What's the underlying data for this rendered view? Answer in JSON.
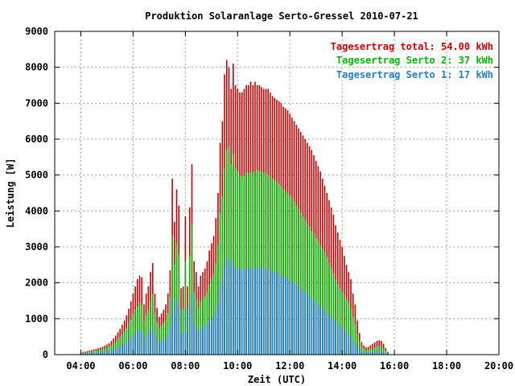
{
  "chart_data": {
    "type": "bar",
    "title": "Produktion Solaranlage Serto-Gressel 2010-07-21",
    "xlabel": "Zeit (UTC)",
    "ylabel": "Leistung [W]",
    "x_ticks": [
      "04:00",
      "06:00",
      "08:00",
      "10:00",
      "12:00",
      "14:00",
      "16:00",
      "18:00",
      "20:00"
    ],
    "y_ticks": [
      0,
      1000,
      2000,
      3000,
      4000,
      5000,
      6000,
      7000,
      8000,
      9000
    ],
    "ylim": [
      0,
      9000
    ],
    "x_range": [
      "03:00",
      "20:00"
    ],
    "grid": true,
    "legend_position": "top-right",
    "interval_minutes": 5,
    "start_time": "04:00",
    "series": [
      {
        "name": "Tagesertrag total: 54.00 kWh",
        "color": "#cc0000",
        "values": [
          60,
          75,
          90,
          100,
          115,
          130,
          145,
          160,
          175,
          195,
          220,
          250,
          280,
          320,
          380,
          450,
          530,
          620,
          720,
          830,
          950,
          1100,
          1280,
          1480,
          1700,
          1900,
          2100,
          2200,
          2150,
          1400,
          1700,
          1900,
          2300,
          2550,
          1700,
          1300,
          1050,
          1150,
          1250,
          1400,
          1700,
          2350,
          4900,
          3700,
          4600,
          4150,
          1850,
          1900,
          3850,
          1900,
          4100,
          5300,
          2600,
          2300,
          1900,
          2200,
          2300,
          2400,
          2600,
          2900,
          3100,
          3300,
          3800,
          4500,
          5900,
          6500,
          7800,
          8200,
          8000,
          7400,
          8100,
          7500,
          7400,
          7300,
          7300,
          7400,
          7500,
          7500,
          7600,
          7500,
          7600,
          7500,
          7500,
          7450,
          7400,
          7400,
          7400,
          7300,
          7200,
          7150,
          7100,
          7050,
          7000,
          6900,
          6850,
          6800,
          6700,
          6600,
          6500,
          6400,
          6300,
          6200,
          6100,
          6000,
          5900,
          5800,
          5700,
          5550,
          5400,
          5250,
          5100,
          4900,
          4700,
          4500,
          4300,
          4100,
          3900,
          3600,
          3400,
          3200,
          3000,
          2750,
          2500,
          2300,
          2100,
          1700,
          1400,
          950,
          600,
          350,
          250,
          200,
          220,
          260,
          300,
          340,
          380,
          400,
          380,
          300,
          180,
          80
        ]
      },
      {
        "name": "Tagesertrag Serto 2: 37 kWh",
        "color": "#00bb00",
        "values": [
          40,
          50,
          60,
          70,
          80,
          90,
          100,
          110,
          120,
          135,
          150,
          170,
          190,
          220,
          260,
          310,
          360,
          420,
          490,
          560,
          640,
          740,
          860,
          990,
          1130,
          1250,
          1350,
          1450,
          1380,
          900,
          1100,
          1250,
          1500,
          1700,
          1150,
          900,
          720,
          800,
          870,
          960,
          1150,
          1600,
          3300,
          2500,
          3100,
          2800,
          1250,
          1280,
          2600,
          1280,
          2750,
          3600,
          1750,
          1550,
          1280,
          1480,
          1550,
          1620,
          1750,
          1950,
          2100,
          2250,
          2550,
          3050,
          3950,
          4400,
          5200,
          5700,
          5800,
          5300,
          5600,
          5200,
          5100,
          5000,
          4950,
          5000,
          5050,
          5050,
          5100,
          5050,
          5100,
          5150,
          5100,
          5100,
          5050,
          5050,
          5000,
          4950,
          4900,
          4850,
          4800,
          4750,
          4700,
          4600,
          4550,
          4500,
          4420,
          4350,
          4250,
          4150,
          4050,
          3950,
          3850,
          3750,
          3650,
          3550,
          3450,
          3350,
          3250,
          3150,
          3050,
          2950,
          2850,
          2700,
          2550,
          2400,
          2250,
          2100,
          1950,
          1850,
          1750,
          1650,
          1550,
          1450,
          1300,
          1050,
          850,
          580,
          360,
          210,
          150,
          120,
          130,
          150,
          180,
          200,
          220,
          240,
          220,
          180,
          110,
          50
        ]
      },
      {
        "name": "Tagesertrag Serto 1: 17 kWh",
        "color": "#1f7fd0",
        "values": [
          20,
          25,
          30,
          35,
          40,
          45,
          50,
          55,
          60,
          65,
          75,
          85,
          95,
          110,
          130,
          150,
          175,
          200,
          235,
          270,
          310,
          360,
          420,
          480,
          540,
          600,
          650,
          700,
          660,
          430,
          530,
          600,
          720,
          820,
          560,
          430,
          350,
          380,
          420,
          460,
          560,
          780,
          1600,
          1200,
          1500,
          1350,
          600,
          620,
          1250,
          620,
          1350,
          1700,
          850,
          750,
          620,
          720,
          750,
          780,
          850,
          940,
          1000,
          1080,
          1220,
          1450,
          1900,
          2100,
          2500,
          2700,
          2650,
          2450,
          2600,
          2450,
          2400,
          2380,
          2350,
          2380,
          2400,
          2400,
          2420,
          2400,
          2420,
          2450,
          2420,
          2420,
          2400,
          2400,
          2380,
          2350,
          2330,
          2300,
          2280,
          2250,
          2220,
          2180,
          2150,
          2120,
          2080,
          2040,
          2000,
          1950,
          1900,
          1850,
          1800,
          1750,
          1700,
          1640,
          1580,
          1520,
          1460,
          1400,
          1340,
          1280,
          1220,
          1160,
          1100,
          1040,
          980,
          920,
          860,
          800,
          740,
          680,
          620,
          560,
          480,
          390,
          310,
          220,
          150,
          90,
          65,
          55,
          60,
          70,
          80,
          90,
          100,
          110,
          100,
          80,
          50,
          20
        ]
      }
    ]
  }
}
